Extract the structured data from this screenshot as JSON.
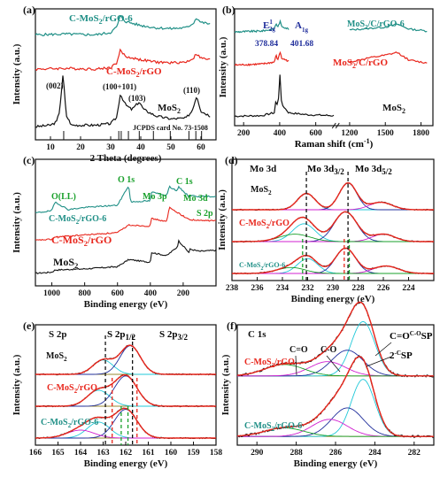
{
  "colors": {
    "black": "#111111",
    "red": "#e8261c",
    "teal": "#1f8f86",
    "blue": "#1f2d9b",
    "green": "#19a02b",
    "cyan": "#20c8d8",
    "magenta": "#d020d0",
    "olive": "#9a8a30"
  },
  "chart_data": [
    {
      "id": "a",
      "type": "line",
      "panel_label": "(a)",
      "xlabel": "2 Theta (degrees)",
      "ylabel": "Intensity (a.u.)",
      "xlim": [
        5,
        65
      ],
      "xticks": [
        10,
        20,
        30,
        40,
        50,
        60
      ],
      "series": [
        {
          "name": "MoS2",
          "label": "MoS",
          "label_sub": "2",
          "color": "black",
          "points": [
            [
              5,
              10
            ],
            [
              10,
              12
            ],
            [
              12,
              16
            ],
            [
              13,
              30
            ],
            [
              14.2,
              78
            ],
            [
              15.2,
              25
            ],
            [
              17,
              12
            ],
            [
              25,
              12
            ],
            [
              30,
              14
            ],
            [
              32,
              22
            ],
            [
              33.2,
              52
            ],
            [
              35,
              38
            ],
            [
              37,
              32
            ],
            [
              39.5,
              42
            ],
            [
              41,
              32
            ],
            [
              45,
              24
            ],
            [
              50,
              20
            ],
            [
              55,
              21
            ],
            [
              57,
              30
            ],
            [
              58.6,
              50
            ],
            [
              60,
              30
            ],
            [
              63,
              24
            ]
          ]
        },
        {
          "name": "C-MoS2/rGO",
          "label": "C-MoS",
          "label_sub": "2",
          "label_tail": "/rGO",
          "color": "red",
          "points": [
            [
              5,
              84
            ],
            [
              15,
              85
            ],
            [
              25,
              84
            ],
            [
              30,
              86
            ],
            [
              32,
              92
            ],
            [
              33.2,
              108
            ],
            [
              35,
              100
            ],
            [
              40,
              96
            ],
            [
              45,
              93
            ],
            [
              50,
              92
            ],
            [
              55,
              93
            ],
            [
              57.5,
              98
            ],
            [
              58.5,
              104
            ],
            [
              60,
              98
            ],
            [
              63,
              96
            ]
          ]
        },
        {
          "name": "C-MoS2/rGO-6",
          "label": "C-MoS",
          "label_sub": "2",
          "label_tail": "/rGO-6",
          "color": "teal",
          "points": [
            [
              5,
              128
            ],
            [
              15,
              129
            ],
            [
              25,
              128
            ],
            [
              30,
              131
            ],
            [
              32,
              138
            ],
            [
              33.2,
              152
            ],
            [
              35,
              145
            ],
            [
              40,
              140
            ],
            [
              45,
              137
            ],
            [
              50,
              136
            ],
            [
              55,
              137
            ],
            [
              57.5,
              143
            ],
            [
              58.5,
              150
            ],
            [
              60,
              144
            ],
            [
              63,
              142
            ]
          ]
        }
      ],
      "reference_sticks": [
        14.4,
        32.7,
        33.5,
        35.9,
        39.5,
        44.2,
        49.8,
        56.0,
        58.3,
        60.2
      ],
      "annotations": [
        "(002)",
        "(100+101)",
        "(103)",
        "(110)",
        "MoS2",
        "JCPDS card No. 73-1508"
      ]
    },
    {
      "id": "b",
      "type": "line",
      "panel_label": "(b)",
      "xlabel": "Raman shift (cm",
      "xlabel_sup": "-1",
      "xlabel_tail": ")",
      "ylabel": "Intensity (a.u.)",
      "xticks": [
        200,
        400,
        600,
        1200,
        1500,
        1800
      ],
      "series": [
        {
          "name": "MoS2",
          "label": "MoS",
          "label_sub": "2",
          "color": "black",
          "points": [
            [
              150,
              5
            ],
            [
              300,
              6
            ],
            [
              370,
              12
            ],
            [
              380,
              40
            ],
            [
              390,
              20
            ],
            [
              402,
              95
            ],
            [
              410,
              30
            ],
            [
              450,
              12
            ],
            [
              550,
              8
            ],
            [
              700,
              6
            ]
          ]
        },
        {
          "name": "MoS2/C/rGO",
          "label": "MoS",
          "label_sub": "2",
          "label_tail": "/C/rGO",
          "color": "red",
          "points": [
            [
              150,
              110
            ],
            [
              300,
              112
            ],
            [
              370,
              116
            ],
            [
              380,
              130
            ],
            [
              390,
              120
            ],
            [
              402,
              138
            ],
            [
              410,
              124
            ],
            [
              450,
              118
            ],
            [
              1200,
              116
            ],
            [
              1350,
              124
            ],
            [
              1500,
              130
            ],
            [
              1600,
              136
            ],
            [
              1700,
              120
            ],
            [
              1850,
              114
            ]
          ]
        },
        {
          "name": "MoS2/C/rGO-6",
          "label": "MoS",
          "label_sub": "2",
          "label_tail": "/C/rGO-6",
          "color": "teal",
          "points": [
            [
              150,
              178
            ],
            [
              300,
              180
            ],
            [
              370,
              184
            ],
            [
              380,
              196
            ],
            [
              390,
              188
            ],
            [
              402,
              200
            ],
            [
              410,
              190
            ],
            [
              450,
              184
            ],
            [
              1200,
              182
            ],
            [
              1350,
              185
            ],
            [
              1500,
              188
            ],
            [
              1600,
              194
            ],
            [
              1700,
              184
            ],
            [
              1850,
              180
            ]
          ]
        }
      ],
      "peak_labels": [
        "E",
        "1",
        "2g",
        "A",
        "1g"
      ],
      "peak_values": [
        "378.84",
        "401.68"
      ]
    },
    {
      "id": "c",
      "type": "line",
      "panel_label": "(c)",
      "xlabel": "Binding energy (eV)",
      "ylabel": "Intensity (a.u.)",
      "xlim": [
        1100,
        0
      ],
      "xticks": [
        1000,
        800,
        600,
        400,
        200
      ],
      "series": [
        {
          "name": "MoS2",
          "label": "MoS",
          "label_sub": "2",
          "color": "black",
          "points": [
            [
              1100,
              10
            ],
            [
              1000,
              12
            ],
            [
              980,
              16
            ],
            [
              800,
              18
            ],
            [
              600,
              22
            ],
            [
              532,
              35
            ],
            [
              400,
              30
            ],
            [
              395,
              48
            ],
            [
              300,
              42
            ],
            [
              285,
              46
            ],
            [
              235,
              58
            ],
            [
              230,
              70
            ],
            [
              165,
              48
            ],
            [
              160,
              54
            ],
            [
              100,
              50
            ],
            [
              0,
              52
            ]
          ]
        },
        {
          "name": "C-MoS2/rGO",
          "label": "C-MoS",
          "label_sub": "2",
          "label_tail": "/rGO",
          "color": "red",
          "points": [
            [
              1100,
              70
            ],
            [
              1000,
              72
            ],
            [
              980,
              76
            ],
            [
              800,
              80
            ],
            [
              600,
              84
            ],
            [
              532,
              98
            ],
            [
              400,
              96
            ],
            [
              395,
              110
            ],
            [
              300,
              104
            ],
            [
              285,
              130
            ],
            [
              230,
              120
            ],
            [
              165,
              108
            ],
            [
              100,
              106
            ],
            [
              0,
              106
            ]
          ]
        },
        {
          "name": "C-MoS2/rGO-6",
          "label": "C-MoS",
          "label_sub": "2",
          "label_tail": "/rGO-6",
          "color": "teal",
          "points": [
            [
              1100,
              120
            ],
            [
              1000,
              124
            ],
            [
              980,
              140
            ],
            [
              900,
              126
            ],
            [
              800,
              130
            ],
            [
              600,
              134
            ],
            [
              532,
              170
            ],
            [
              520,
              140
            ],
            [
              400,
              142
            ],
            [
              395,
              158
            ],
            [
              300,
              152
            ],
            [
              285,
              168
            ],
            [
              235,
              160
            ],
            [
              230,
              168
            ],
            [
              165,
              150
            ],
            [
              160,
              152
            ],
            [
              100,
              150
            ],
            [
              0,
              150
            ]
          ]
        }
      ],
      "annotations": [
        "O(LL)",
        "O 1s",
        "C 1s",
        "Mo 3p",
        "Mo 3d",
        "S 2p"
      ]
    },
    {
      "id": "d",
      "type": "line",
      "panel_label": "(d)",
      "title": "Mo 3d",
      "xlabel": "Binding energy (eV)",
      "ylabel": "Intensity (a.u.)",
      "xlim": [
        238,
        222
      ],
      "xticks": [
        238,
        236,
        234,
        232,
        230,
        228,
        226,
        224
      ],
      "reference_lines": [
        {
          "x": 232.1,
          "label": "Mo 3d",
          "sub": "3/2"
        },
        {
          "x": 228.8,
          "label": "Mo 3d",
          "sub": "5/2"
        }
      ],
      "series": [
        {
          "name": "MoS2",
          "label": "MoS",
          "label_sub": "2",
          "color": "black"
        },
        {
          "name": "C-MoS2/rGO",
          "label": "C-MoS",
          "label_sub": "2",
          "label_tail": "/rGO",
          "color": "red"
        },
        {
          "name": "C-MoS2/rGO-6",
          "label": "C-MoS",
          "label_sub": "2",
          "label_tail": "/rGO-6",
          "color": "teal"
        }
      ]
    },
    {
      "id": "e",
      "type": "line",
      "panel_label": "(e)",
      "title": "S 2p",
      "xlabel": "Binding energy (eV)",
      "ylabel": "Intensity (a.u.)",
      "xlim": [
        166,
        158
      ],
      "xticks": [
        166,
        165,
        164,
        163,
        162,
        161,
        160,
        159,
        158
      ],
      "reference_lines": [
        {
          "x": 162.9,
          "label": "S 2p",
          "sub": "1/2"
        },
        {
          "x": 161.7,
          "label": "S 2p",
          "sub": "3/2"
        }
      ],
      "series": [
        {
          "name": "MoS2",
          "label": "MoS",
          "label_sub": "2",
          "color": "black"
        },
        {
          "name": "C-MoS2/rGO",
          "label": "C-MoS",
          "label_sub": "2",
          "label_tail": "/rGO",
          "color": "red"
        },
        {
          "name": "C-MoS2/rGO-6",
          "label": "C-MoS",
          "label_sub": "2",
          "label_tail": "/rGO-6",
          "color": "teal"
        }
      ]
    },
    {
      "id": "f",
      "type": "line",
      "panel_label": "(f)",
      "title": "C 1s",
      "xlabel": "Binding energy (eV)",
      "ylabel": "Intensity (a.u.)",
      "xlim": [
        291,
        281
      ],
      "xticks": [
        290,
        288,
        286,
        284,
        282
      ],
      "annotations": [
        "C=O",
        "C-O",
        "SP",
        "2",
        "-C",
        "SP",
        "3",
        "-C"
      ],
      "series": [
        {
          "name": "C-MoS2/rGO",
          "label": "C-MoS",
          "label_sub": "2",
          "label_tail": "/rGO",
          "color": "red"
        },
        {
          "name": "C-MoS2/rGO-6",
          "label": "C-MoS",
          "label_sub": "2",
          "label_tail": "/rGO-6",
          "color": "teal"
        }
      ]
    }
  ]
}
